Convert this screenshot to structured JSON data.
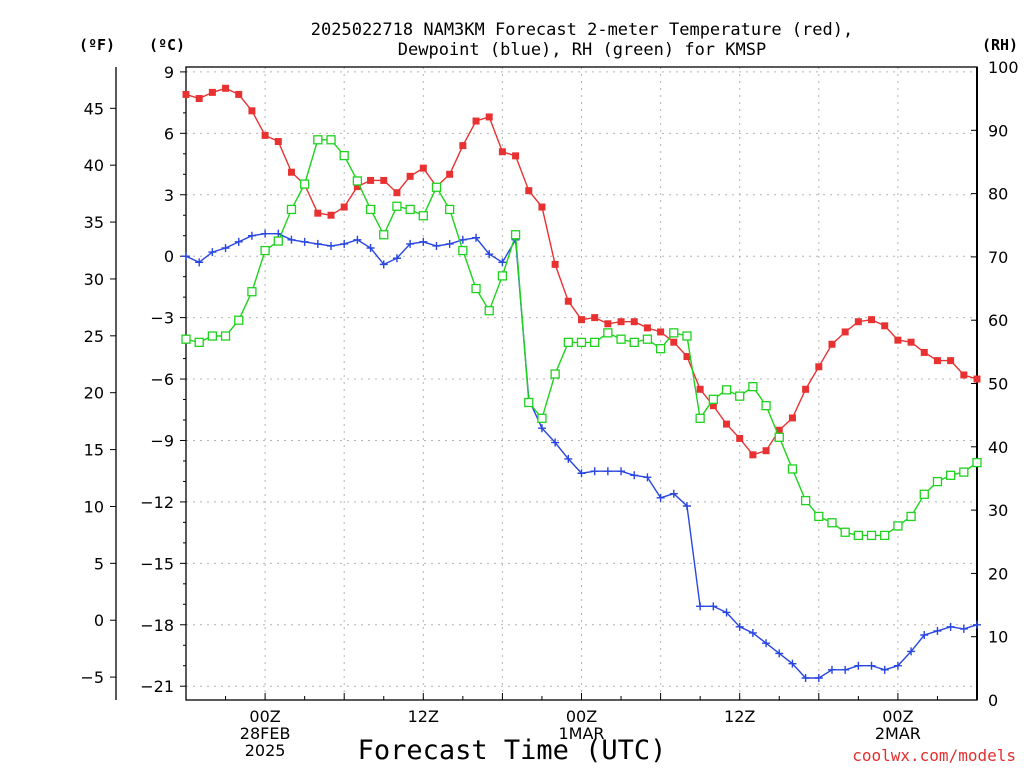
{
  "title": {
    "line1": "2025022718 NAM3KM Forecast 2-meter Temperature (red),",
    "line2": "Dewpoint (blue), RH (green) for KMSP"
  },
  "unit_labels": {
    "fahrenheit": "(ºF)",
    "celsius": "(ºC)",
    "rh": "(RH)"
  },
  "credit": "coolwx.com/models",
  "colors": {
    "temperature": "#e83232",
    "dewpoint": "#2846e0",
    "rh": "#1ed21e",
    "grid": "#b4b4b4"
  },
  "chart_data": {
    "type": "line",
    "title": "2025022718 NAM3KM Forecast 2-meter Temperature (red), Dewpoint (blue), RH (green) for KMSP",
    "xlabel": "Forecast Time (UTC)",
    "x_unit": "forecast hour",
    "x": [
      18,
      19,
      20,
      21,
      22,
      23,
      24,
      25,
      26,
      27,
      28,
      29,
      30,
      31,
      32,
      33,
      34,
      35,
      36,
      37,
      38,
      39,
      40,
      41,
      42,
      43,
      44,
      45,
      46,
      47,
      48,
      49,
      50,
      51,
      52,
      53,
      54,
      55,
      56,
      57,
      58,
      59,
      60,
      61,
      62,
      63,
      64,
      65,
      66,
      67,
      68,
      69,
      70,
      71,
      72,
      73,
      74,
      75,
      76,
      77,
      78
    ],
    "x_ticks": [
      {
        "hour": 24,
        "lines": [
          "00Z",
          "28FEB",
          "2025"
        ]
      },
      {
        "hour": 36,
        "lines": [
          "12Z"
        ]
      },
      {
        "hour": 48,
        "lines": [
          "00Z",
          "1MAR"
        ]
      },
      {
        "hour": 60,
        "lines": [
          "12Z"
        ]
      },
      {
        "hour": 72,
        "lines": [
          "00Z",
          "2MAR"
        ]
      }
    ],
    "xlim": [
      18,
      78
    ],
    "left_axis_celsius": {
      "label": "(ºC)",
      "ticks": [
        9,
        6,
        3,
        0,
        -3,
        -6,
        -9,
        -12,
        -15,
        -18,
        -21
      ],
      "ylim": [
        -22,
        9.2
      ]
    },
    "left_axis_fahrenheit": {
      "label": "(ºF)",
      "ticks": [
        45,
        40,
        35,
        30,
        25,
        20,
        15,
        10,
        5,
        0,
        -5
      ]
    },
    "right_axis_rh": {
      "label": "(RH)",
      "ticks": [
        100,
        90,
        80,
        70,
        60,
        50,
        40,
        30,
        20,
        10,
        0
      ],
      "ylim": [
        0,
        100
      ]
    },
    "grid": true,
    "series": [
      {
        "name": "Temperature",
        "axis": "celsius",
        "marker": "filled-square",
        "values": [
          7.9,
          7.7,
          8.0,
          8.2,
          7.9,
          7.1,
          5.9,
          5.6,
          4.1,
          3.5,
          2.1,
          2.0,
          2.4,
          3.4,
          3.7,
          3.7,
          3.1,
          3.9,
          4.3,
          3.4,
          4.0,
          5.4,
          6.6,
          6.8,
          5.1,
          4.9,
          3.2,
          2.4,
          -0.4,
          -2.2,
          -3.1,
          -3.0,
          -3.3,
          -3.2,
          -3.2,
          -3.5,
          -3.7,
          -4.2,
          -4.9,
          -6.5,
          -7.3,
          -8.2,
          -8.9,
          -9.7,
          -9.5,
          -8.5,
          -7.9,
          -6.5,
          -5.4,
          -4.3,
          -3.7,
          -3.2,
          -3.1,
          -3.4,
          -4.1,
          -4.2,
          -4.7,
          -5.1,
          -5.1,
          -5.8,
          -6.0
        ]
      },
      {
        "name": "Dewpoint",
        "axis": "celsius",
        "marker": "plus",
        "values": [
          0.0,
          -0.3,
          0.2,
          0.4,
          0.7,
          1.0,
          1.1,
          1.1,
          0.8,
          0.7,
          0.6,
          0.5,
          0.6,
          0.8,
          0.4,
          -0.4,
          -0.1,
          0.6,
          0.7,
          0.5,
          0.6,
          0.8,
          0.9,
          0.1,
          -0.3,
          0.8,
          -7.0,
          -8.4,
          -9.1,
          -9.9,
          -10.6,
          -10.5,
          -10.5,
          -10.5,
          -10.7,
          -10.8,
          -11.8,
          -11.6,
          -12.2,
          -17.1,
          -17.1,
          -17.4,
          -18.1,
          -18.4,
          -18.9,
          -19.4,
          -19.9,
          -20.6,
          -20.6,
          -20.2,
          -20.2,
          -20.0,
          -20.0,
          -20.2,
          -20.0,
          -19.3,
          -18.5,
          -18.3,
          -18.1,
          -18.2,
          -18.0
        ]
      },
      {
        "name": "RH",
        "axis": "rh",
        "marker": "open-square",
        "values": [
          57,
          56.5,
          57.5,
          57.5,
          60,
          64.5,
          71,
          72.5,
          77.5,
          81.5,
          88.5,
          88.5,
          86,
          82,
          77.5,
          73.5,
          78,
          77.5,
          76.5,
          81,
          77.5,
          71,
          65,
          61.5,
          67,
          73.5,
          47,
          44.5,
          51.5,
          56.5,
          56.5,
          56.5,
          58,
          57,
          56.5,
          57,
          55.5,
          58,
          57.5,
          44.5,
          47.5,
          49,
          48,
          49.5,
          46.5,
          41.5,
          36.5,
          31.5,
          29,
          28,
          26.5,
          26,
          26,
          26,
          27.5,
          29,
          32.5,
          34.5,
          35.5,
          36,
          37.5
        ]
      }
    ]
  }
}
